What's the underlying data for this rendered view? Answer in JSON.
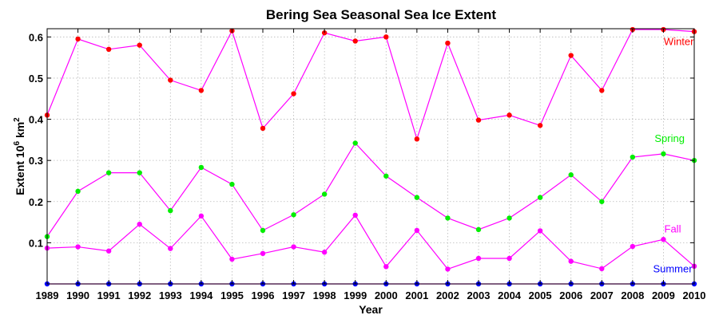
{
  "chart_data": {
    "type": "line",
    "title": "Bering Sea Seasonal Sea Ice Extent",
    "xlabel": "Year",
    "ylabel": "Extent 10",
    "ylabel_exp": "6",
    "ylabel_unit": " km",
    "ylabel_unit_exp": "2",
    "xlim": [
      1989,
      2010
    ],
    "ylim": [
      0,
      0.62
    ],
    "x": [
      1989,
      1990,
      1991,
      1992,
      1993,
      1994,
      1995,
      1996,
      1997,
      1998,
      1999,
      2000,
      2001,
      2002,
      2003,
      2004,
      2005,
      2006,
      2007,
      2008,
      2009,
      2010
    ],
    "x_tick_labels": [
      "1989",
      "1990",
      "1991",
      "1992",
      "1993",
      "1994",
      "1995",
      "1996",
      "1997",
      "1998",
      "1999",
      "2000",
      "2001",
      "2002",
      "2003",
      "2004",
      "2005",
      "2006",
      "2007",
      "2008",
      "2009",
      "2010"
    ],
    "y_ticks": [
      0.1,
      0.2,
      0.3,
      0.4,
      0.5,
      0.6
    ],
    "y_tick_labels": [
      "0.1",
      "0.2",
      "0.3",
      "0.4",
      "0.5",
      "0.6"
    ],
    "grid": true,
    "line_color": "#ff00ff",
    "series": [
      {
        "name": "Winter",
        "color": "#ff0000",
        "label_at": [
          2009.5,
          0.58
        ],
        "values": [
          0.41,
          0.595,
          0.57,
          0.58,
          0.495,
          0.47,
          0.615,
          0.378,
          0.462,
          0.61,
          0.59,
          0.6,
          0.352,
          0.585,
          0.398,
          0.41,
          0.385,
          0.555,
          0.47,
          0.618,
          0.618,
          0.613
        ]
      },
      {
        "name": "Spring",
        "color": "#00ee00",
        "label_at": [
          2009.2,
          0.345
        ],
        "values": [
          0.115,
          0.225,
          0.27,
          0.27,
          0.178,
          0.283,
          0.242,
          0.13,
          0.168,
          0.218,
          0.342,
          0.262,
          0.21,
          0.16,
          0.132,
          0.16,
          0.21,
          0.265,
          0.2,
          0.308,
          0.316,
          0.3
        ]
      },
      {
        "name": "Fall",
        "color": "#ff00ff",
        "label_at": [
          2009.3,
          0.125
        ],
        "values": [
          0.087,
          0.09,
          0.08,
          0.145,
          0.086,
          0.165,
          0.06,
          0.074,
          0.09,
          0.077,
          0.167,
          0.042,
          0.13,
          0.036,
          0.062,
          0.062,
          0.129,
          0.055,
          0.037,
          0.091,
          0.108,
          0.043
        ]
      },
      {
        "name": "Summer",
        "color": "#0000ff",
        "label_at": [
          2009.3,
          0.028
        ],
        "values": [
          0.0,
          0.0,
          0.0,
          0.0,
          0.0,
          0.0,
          0.0,
          0.0,
          0.0,
          0.0,
          0.0,
          0.0,
          0.0,
          0.0,
          0.0,
          0.0,
          0.0,
          0.0,
          0.0,
          0.0,
          0.0,
          0.0
        ]
      }
    ]
  }
}
